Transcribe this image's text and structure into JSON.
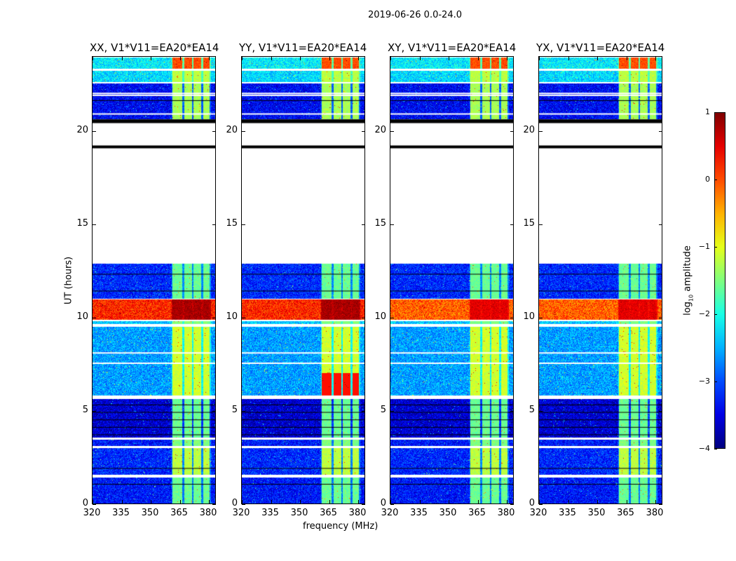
{
  "chart_data": {
    "type": "heatmap",
    "suptitle": "2019-06-26 0.0-24.0",
    "xlabel": "frequency (MHz)",
    "ylabel": "UT (hours)",
    "xlim": [
      320,
      384
    ],
    "ylim": [
      0,
      24
    ],
    "xticks": [
      "320",
      "335",
      "350",
      "365",
      "380"
    ],
    "xtick_values": [
      320,
      335,
      350,
      365,
      380
    ],
    "yticks": [
      "0",
      "5",
      "10",
      "15",
      "20"
    ],
    "ytick_values": [
      0,
      5,
      10,
      15,
      20
    ],
    "band_edges_mhz": [
      [
        361,
        366
      ],
      [
        367,
        371
      ],
      [
        372,
        376
      ],
      [
        377,
        380
      ]
    ],
    "panels": [
      {
        "title": "XX, V1*V11=EA20*EA14",
        "red_boost": 0
      },
      {
        "title": "YY, V1*V11=EA20*EA14",
        "red_boost": 1
      },
      {
        "title": "XY, V1*V11=EA20*EA14",
        "red_boost": 0
      },
      {
        "title": "YX, V1*V11=EA20*EA14",
        "red_boost": 0
      }
    ],
    "segments": [
      {
        "ut": [
          0,
          1.4
        ],
        "base": -3.3,
        "band": -1.6
      },
      {
        "ut": [
          1.55,
          3.0
        ],
        "base": -3.2,
        "band": -1.2
      },
      {
        "ut": [
          3.1,
          3.45
        ],
        "base": -3.3,
        "band": -1.5
      },
      {
        "ut": [
          3.55,
          5.6
        ],
        "base": -3.6,
        "band": -1.6
      },
      {
        "ut": [
          5.8,
          9.5
        ],
        "base": -2.6,
        "band": -1.1
      },
      {
        "ut": [
          9.65,
          9.8
        ],
        "base": -2.4,
        "band": -1.5
      },
      {
        "ut": [
          9.85,
          10.95
        ],
        "base": 0.2,
        "band": 0.8
      },
      {
        "ut": [
          11.0,
          12.85
        ],
        "base": -3.2,
        "band": -1.6
      },
      {
        "ut": [
          20.6,
          22.5
        ],
        "base": -3.4,
        "band": -1.3
      },
      {
        "ut": [
          22.6,
          23.2
        ],
        "base": -2.3,
        "band": -1.2
      },
      {
        "ut": [
          23.3,
          23.9
        ],
        "base": -2.2,
        "band": 0.0
      }
    ],
    "flag_lines_ut": [
      19.1,
      20.45,
      20.5
    ],
    "colorbar": {
      "label": "log10 amplitude",
      "label_main": "log",
      "label_sub": "10",
      "label_rest": " amplitude",
      "ticks": [
        "1",
        "0",
        "−1",
        "−2",
        "−3",
        "−4"
      ],
      "tick_values": [
        1,
        0,
        -1,
        -2,
        -3,
        -4
      ],
      "range": [
        -4,
        1
      ],
      "colormap": "jet"
    }
  }
}
